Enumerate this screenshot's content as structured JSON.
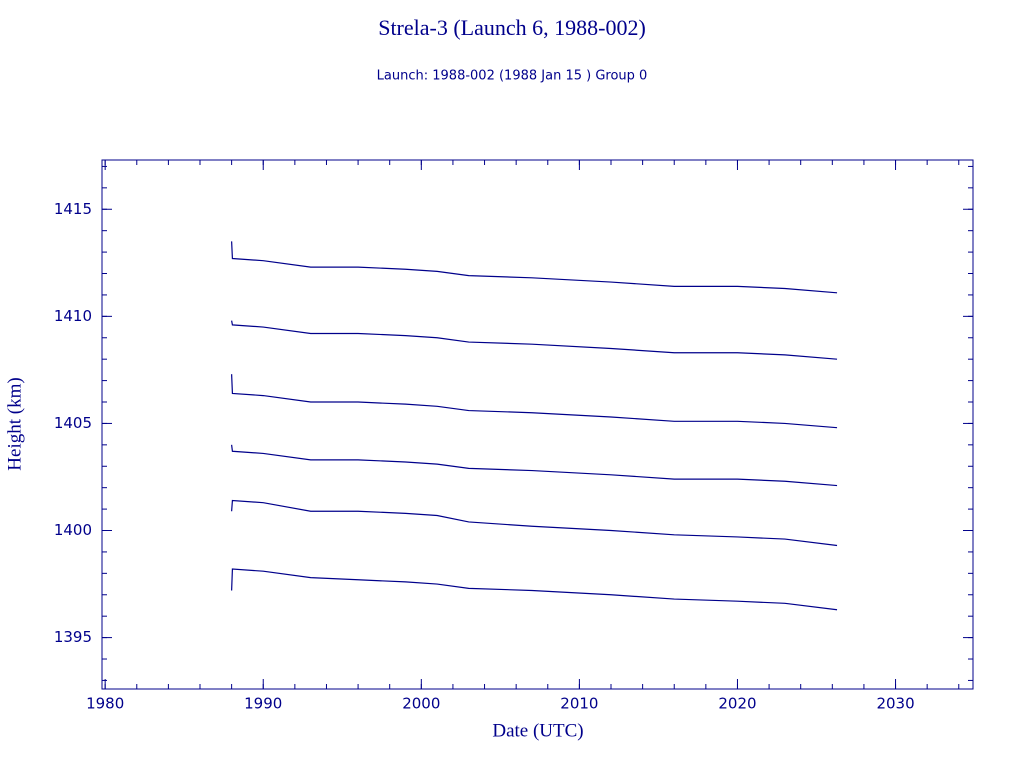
{
  "chart_data": {
    "type": "line",
    "title": "Strela-3 (Launch 6, 1988-002)",
    "subtitle": "Launch: 1988-002  (1988 Jan 15 )  Group 0",
    "x_label": "Date (UTC)",
    "y_label": "Height (km)",
    "x": [
      1988.0,
      1988.05,
      1990,
      1993,
      1996,
      1999,
      2001,
      2003,
      2007,
      2012,
      2016,
      2020,
      2023,
      2026.3
    ],
    "series": [
      {
        "color": "#00008b",
        "values": [
          1413.5,
          1412.7,
          1412.6,
          1412.3,
          1412.3,
          1412.2,
          1412.1,
          1411.9,
          1411.8,
          1411.6,
          1411.4,
          1411.4,
          1411.3,
          1411.1
        ]
      },
      {
        "color": "#00008b",
        "values": [
          1409.8,
          1409.6,
          1409.5,
          1409.2,
          1409.2,
          1409.1,
          1409.0,
          1408.8,
          1408.7,
          1408.5,
          1408.3,
          1408.3,
          1408.2,
          1408.0
        ]
      },
      {
        "color": "#00008b",
        "values": [
          1407.3,
          1406.4,
          1406.3,
          1406.0,
          1406.0,
          1405.9,
          1405.8,
          1405.6,
          1405.5,
          1405.3,
          1405.1,
          1405.1,
          1405.0,
          1404.8
        ]
      },
      {
        "color": "#00008b",
        "values": [
          1404.0,
          1403.7,
          1403.6,
          1403.3,
          1403.3,
          1403.2,
          1403.1,
          1402.9,
          1402.8,
          1402.6,
          1402.4,
          1402.4,
          1402.3,
          1402.1
        ]
      },
      {
        "color": "#00008b",
        "values": [
          1400.9,
          1401.4,
          1401.3,
          1400.9,
          1400.9,
          1400.8,
          1400.7,
          1400.4,
          1400.2,
          1400.0,
          1399.8,
          1399.7,
          1399.6,
          1399.3
        ]
      },
      {
        "color": "#00008b",
        "values": [
          1397.2,
          1398.2,
          1398.1,
          1397.8,
          1397.7,
          1397.6,
          1397.5,
          1397.3,
          1397.2,
          1397.0,
          1396.8,
          1396.7,
          1396.6,
          1396.3
        ]
      }
    ],
    "xlim": [
      1979.8,
      2034.9
    ],
    "ylim": [
      1392.6,
      1417.3
    ],
    "xticks": [
      1980,
      1990,
      2000,
      2010,
      2020,
      2030
    ],
    "yticks": [
      1395,
      1400,
      1405,
      1410,
      1415
    ],
    "minor_ticks": true,
    "axis_color": "#00008b"
  }
}
